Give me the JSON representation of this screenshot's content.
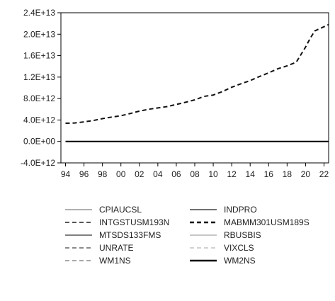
{
  "chart_data": {
    "type": "line",
    "title": "",
    "xlabel": "",
    "ylabel": "",
    "xlim": [
      1993.5,
      2022.5
    ],
    "ylim": [
      -4000000000000.0,
      24000000000000.0
    ],
    "y_ticks": [
      {
        "value": 24000000000000.0,
        "label": "2.4E+13"
      },
      {
        "value": 20000000000000.0,
        "label": "2.0E+13"
      },
      {
        "value": 16000000000000.0,
        "label": "1.6E+13"
      },
      {
        "value": 12000000000000.0,
        "label": "1.2E+13"
      },
      {
        "value": 8000000000000.0,
        "label": "8.0E+12"
      },
      {
        "value": 4000000000000.0,
        "label": "4.0E+12"
      },
      {
        "value": 0.0,
        "label": "0.0E+00"
      },
      {
        "value": -4000000000000.0,
        "label": "-4.0E+12"
      }
    ],
    "x_ticks": [
      {
        "value": 1994,
        "label": "94"
      },
      {
        "value": 1996,
        "label": "96"
      },
      {
        "value": 1998,
        "label": "98"
      },
      {
        "value": 2000,
        "label": "00"
      },
      {
        "value": 2002,
        "label": "02"
      },
      {
        "value": 2004,
        "label": "04"
      },
      {
        "value": 2006,
        "label": "06"
      },
      {
        "value": 2008,
        "label": "08"
      },
      {
        "value": 2010,
        "label": "10"
      },
      {
        "value": 2012,
        "label": "12"
      },
      {
        "value": 2014,
        "label": "14"
      },
      {
        "value": 2016,
        "label": "16"
      },
      {
        "value": 2018,
        "label": "18"
      },
      {
        "value": 2020,
        "label": "20"
      },
      {
        "value": 2022,
        "label": "22"
      }
    ],
    "legend_position": "bottom",
    "series": [
      {
        "name": "CPIAUCSL",
        "color": "#b0b0b0",
        "dash": "solid",
        "x": [
          1994,
          2022.5
        ],
        "values": [
          0,
          0
        ]
      },
      {
        "name": "INDPRO",
        "color": "#707070",
        "dash": "solid",
        "x": [
          1994,
          2022.5
        ],
        "values": [
          0,
          0
        ]
      },
      {
        "name": "INTGSTUSM193N",
        "color": "#555555",
        "dash": "dashed",
        "x": [
          1994,
          2022.5
        ],
        "values": [
          0,
          0
        ]
      },
      {
        "name": "MABMM301USM189S",
        "color": "#111111",
        "dash": "dashed",
        "x": [
          1994,
          1995,
          1996,
          1997,
          1998,
          1999,
          2000,
          2001,
          2002,
          2003,
          2004,
          2005,
          2006,
          2007,
          2008,
          2009,
          2010,
          2011,
          2012,
          2013,
          2014,
          2015,
          2016,
          2017,
          2018,
          2019,
          2020,
          2020.5,
          2021,
          2022,
          2022.5
        ],
        "values": [
          3400000000000.0,
          3450000000000.0,
          3650000000000.0,
          3900000000000.0,
          4250000000000.0,
          4550000000000.0,
          4800000000000.0,
          5200000000000.0,
          5650000000000.0,
          6000000000000.0,
          6250000000000.0,
          6500000000000.0,
          6900000000000.0,
          7300000000000.0,
          7750000000000.0,
          8400000000000.0,
          8650000000000.0,
          9300000000000.0,
          10100000000000.0,
          10750000000000.0,
          11350000000000.0,
          12100000000000.0,
          12800000000000.0,
          13550000000000.0,
          14100000000000.0,
          14800000000000.0,
          17600000000000.0,
          19200000000000.0,
          20600000000000.0,
          21400000000000.0,
          21800000000000.0
        ]
      },
      {
        "name": "MTSDS133FMS",
        "color": "#808080",
        "dash": "solid",
        "x": [
          1994,
          2022.5
        ],
        "values": [
          0,
          0
        ]
      },
      {
        "name": "RBUSBIS",
        "color": "#c8c8c8",
        "dash": "solid",
        "x": [
          1994,
          2022.5
        ],
        "values": [
          0,
          0
        ]
      },
      {
        "name": "UNRATE",
        "color": "#8a8a8a",
        "dash": "dashed",
        "x": [
          1994,
          2022.5
        ],
        "values": [
          0,
          0
        ]
      },
      {
        "name": "VIXCLS",
        "color": "#d2d2d2",
        "dash": "dashed",
        "x": [
          1994,
          2022.5
        ],
        "values": [
          0,
          0
        ]
      },
      {
        "name": "WM1NS",
        "color": "#a8a8a8",
        "dash": "dashed",
        "x": [
          1994,
          2022.5
        ],
        "values": [
          0,
          0
        ]
      },
      {
        "name": "WM2NS",
        "color": "#000000",
        "dash": "solid",
        "x": [
          1994,
          2022.5
        ],
        "values": [
          0,
          0
        ]
      }
    ]
  }
}
